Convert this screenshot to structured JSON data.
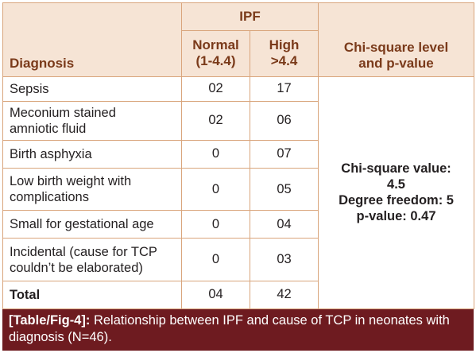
{
  "header": {
    "group_label": "IPF",
    "diagnosis_label": "Diagnosis",
    "normal_label_line1": "Normal",
    "normal_label_line2": "(1-4.4)",
    "high_label_line1": "High",
    "high_label_line2": ">4.4",
    "chi_label_line1": "Chi-square level",
    "chi_label_line2": "and p-value"
  },
  "rows": [
    {
      "diagnosis_line1": "Sepsis",
      "diagnosis_line2": "",
      "normal": "02",
      "high": "17"
    },
    {
      "diagnosis_line1": "Meconium stained",
      "diagnosis_line2": "amniotic fluid",
      "normal": "02",
      "high": "06"
    },
    {
      "diagnosis_line1": "Birth asphyxia",
      "diagnosis_line2": "",
      "normal": "0",
      "high": "07"
    },
    {
      "diagnosis_line1": "Low birth weight with",
      "diagnosis_line2": "complications",
      "normal": "0",
      "high": "05"
    },
    {
      "diagnosis_line1": "Small for gestational age",
      "diagnosis_line2": "",
      "normal": "0",
      "high": "04"
    },
    {
      "diagnosis_line1": "Incidental (cause for TCP",
      "diagnosis_line2": "couldn’t be elaborated)",
      "normal": "0",
      "high": "03"
    }
  ],
  "total": {
    "label": "Total",
    "normal": "04",
    "high": "42"
  },
  "chi_square": {
    "line1": "Chi-square value:",
    "line2": "4.5",
    "line3": "Degree freedom: 5",
    "line4": "p-value: 0.47"
  },
  "caption": {
    "tag": "[Table/Fig-4]:",
    "text": " Relationship between IPF and cause of TCP in neonates with diagnosis (N=46)."
  },
  "colors": {
    "header_bg": "#f6e4d5",
    "header_text": "#7a3a1a",
    "border": "#d9a57c",
    "caption_bg": "#6e1b20",
    "caption_text": "#ffffff"
  }
}
